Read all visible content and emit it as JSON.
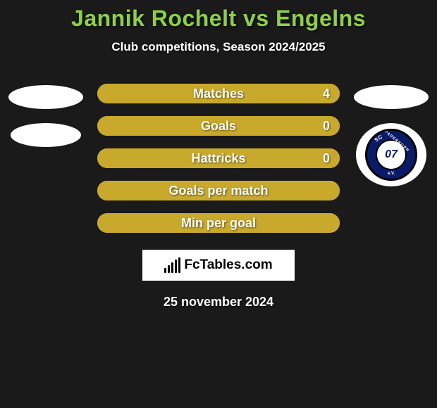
{
  "title": "Jannik Rochelt vs Engelns",
  "subtitle": "Club competitions, Season 2024/2025",
  "title_color": "#8dd043",
  "text_color": "#ffffff",
  "background_color": "#1a1a1a",
  "bars": [
    {
      "label": "Matches",
      "left": "",
      "right": "4",
      "fill_color": "#c9a92b",
      "fill_pct": 100,
      "track_color": "#c9a92b"
    },
    {
      "label": "Goals",
      "left": "",
      "right": "0",
      "fill_color": "#c9a92b",
      "fill_pct": 100,
      "track_color": "#c9a92b"
    },
    {
      "label": "Hattricks",
      "left": "",
      "right": "0",
      "fill_color": "#c9a92b",
      "fill_pct": 100,
      "track_color": "#c9a92b"
    },
    {
      "label": "Goals per match",
      "left": "",
      "right": "",
      "fill_color": "#c9a92b",
      "fill_pct": 100,
      "track_color": "#c9a92b"
    },
    {
      "label": "Min per goal",
      "left": "",
      "right": "",
      "fill_color": "#c9a92b",
      "fill_pct": 100,
      "track_color": "#c9a92b"
    }
  ],
  "left_side": {
    "avatar_bg": "#ffffff",
    "logo_bg": "#ffffff"
  },
  "right_side": {
    "avatar_bg": "#ffffff",
    "club": {
      "name": "SC PADERBORN",
      "number": "07",
      "ev": "e.V.",
      "badge_bg": "#0a1a6a",
      "inner_bg": "#ffffff"
    }
  },
  "brand": {
    "text": "FcTables.com",
    "box_border": "#ffffff",
    "box_bg": "#ffffff",
    "icon_color": "#000000"
  },
  "date": "25 november 2024",
  "typography": {
    "title_fontsize": 32,
    "subtitle_fontsize": 17,
    "bar_label_fontsize": 18,
    "date_fontsize": 18
  }
}
